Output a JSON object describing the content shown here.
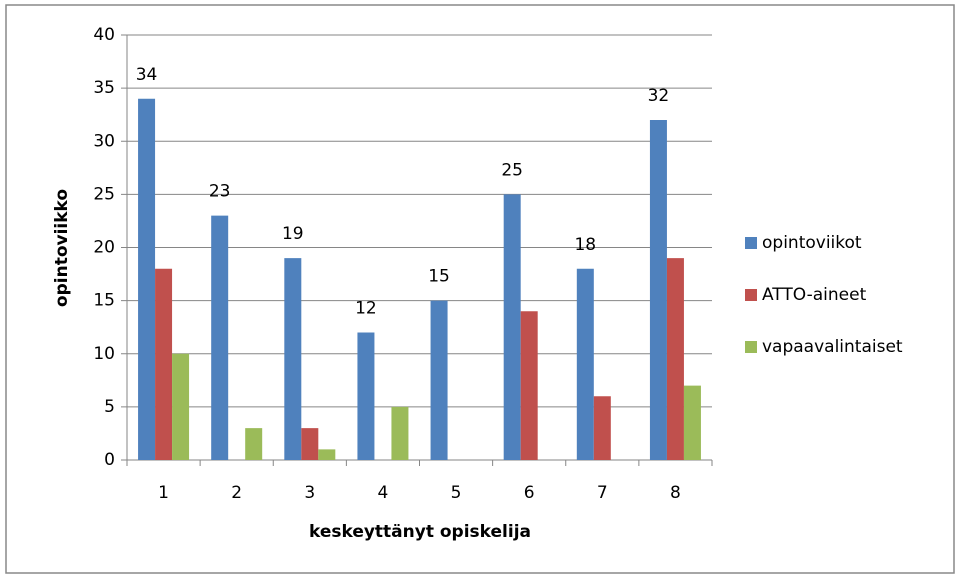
{
  "chart_data": {
    "type": "bar",
    "categories": [
      "1",
      "2",
      "3",
      "4",
      "5",
      "6",
      "7",
      "8"
    ],
    "series": [
      {
        "name": "opintoviikot",
        "color": "#4f81bd",
        "values": [
          34,
          23,
          19,
          12,
          15,
          25,
          18,
          32
        ]
      },
      {
        "name": "ATTO-aineet",
        "color": "#c0504d",
        "values": [
          18,
          0,
          3,
          0,
          0,
          14,
          6,
          19
        ]
      },
      {
        "name": "vapaavalintaiset",
        "color": "#9bbb59",
        "values": [
          10,
          3,
          1,
          5,
          0,
          0,
          0,
          7
        ]
      }
    ],
    "labeled_series": 0,
    "xlabel": "keskeyttänyt opiskelija",
    "ylabel": "opintoviikko",
    "ylim": [
      0,
      40
    ],
    "yticks": [
      0,
      5,
      10,
      15,
      20,
      25,
      30,
      35,
      40
    ],
    "grid": true,
    "legend": "right"
  }
}
